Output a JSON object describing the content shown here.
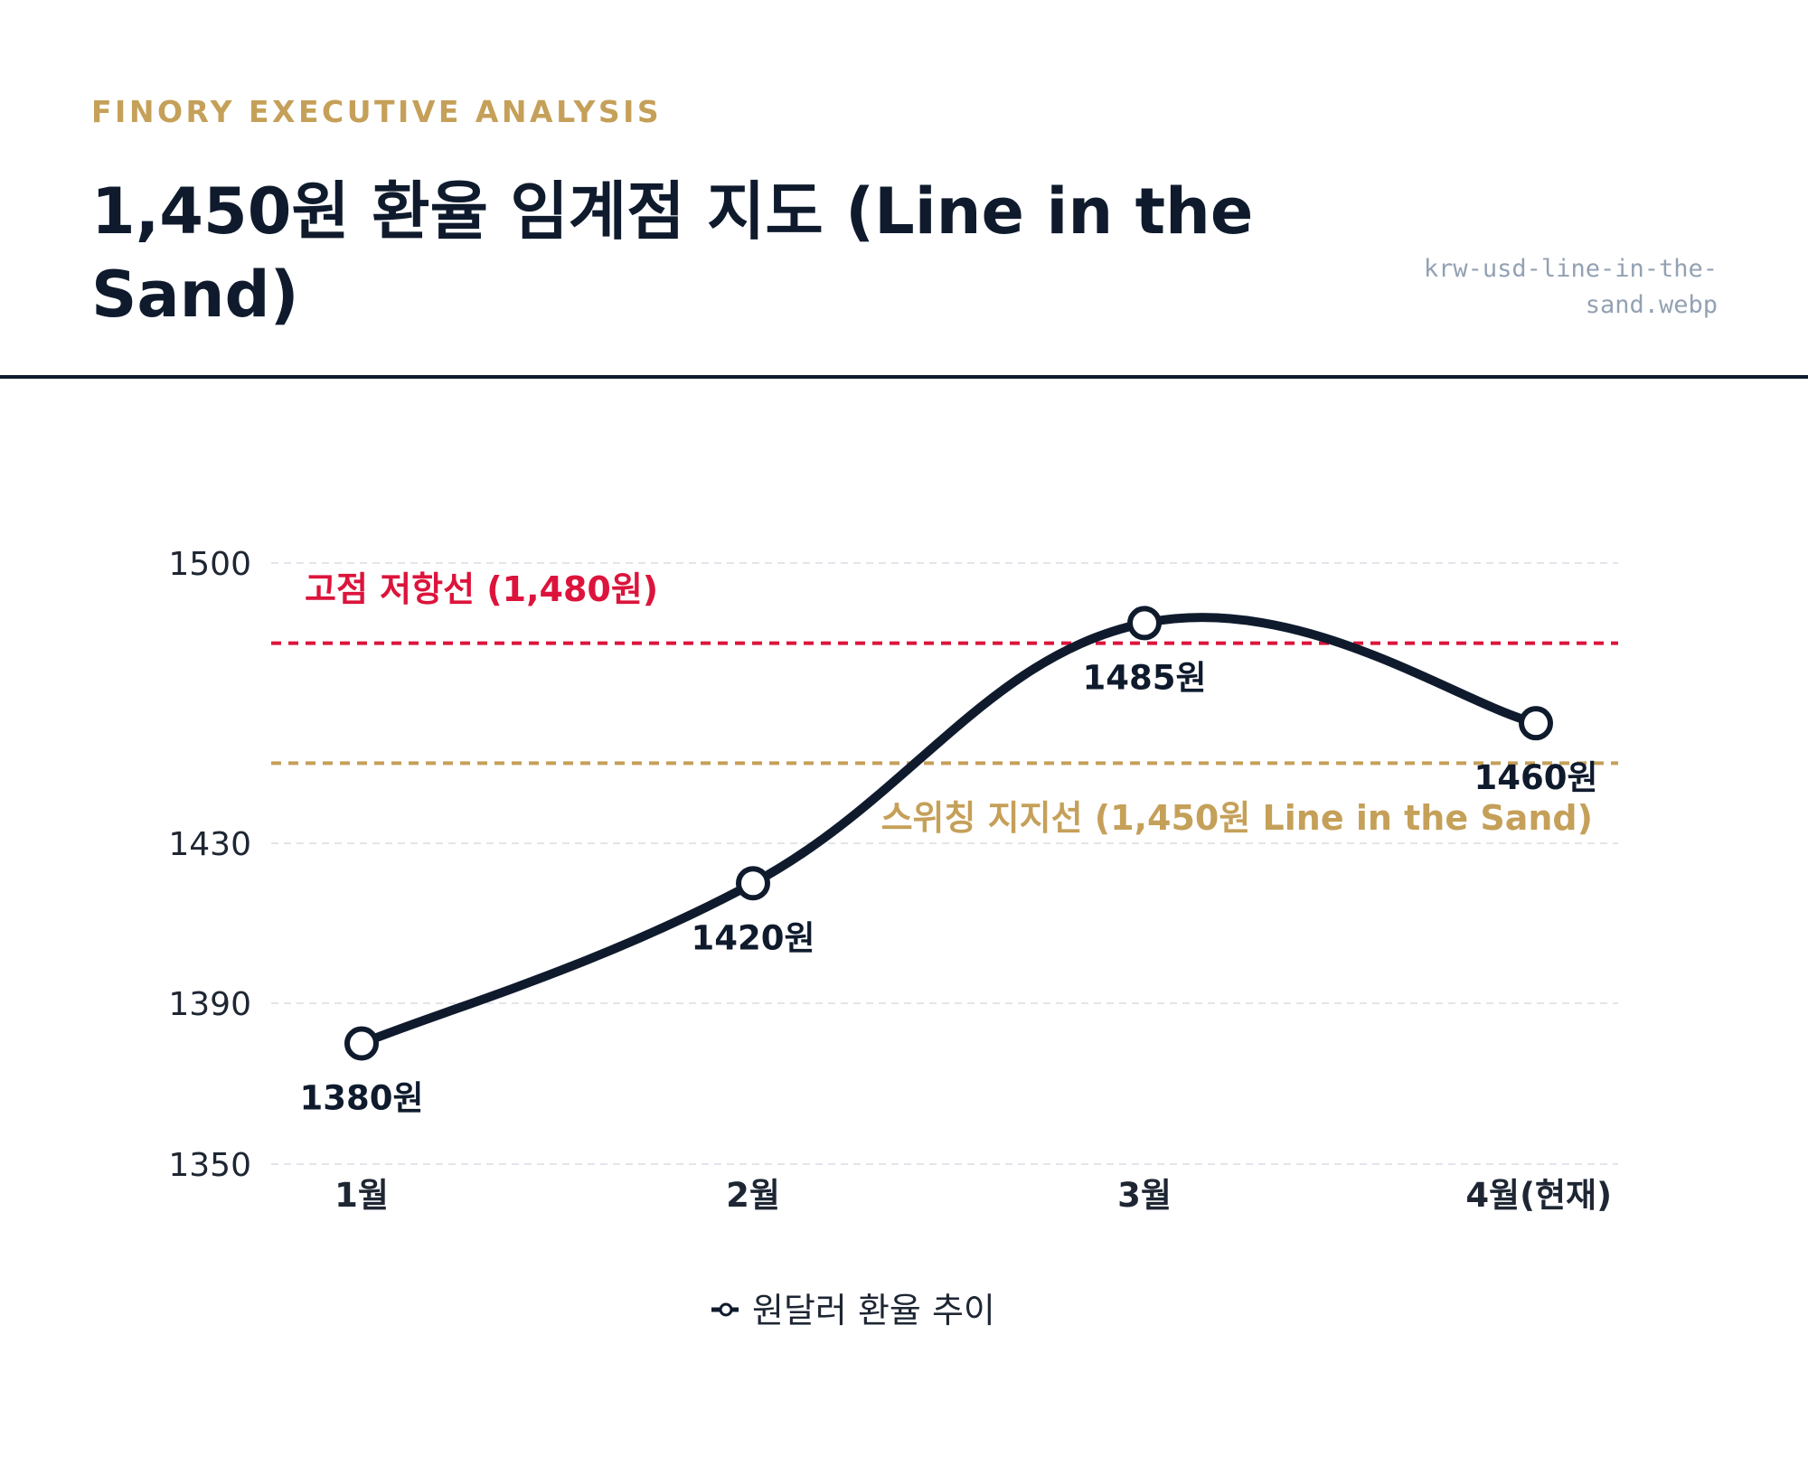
{
  "header": {
    "kicker": "FINORY EXECUTIVE ANALYSIS",
    "title": "1,450원 환율 임계점 지도 (Line in the Sand)",
    "filename": "krw-usd-line-in-the-sand.webp"
  },
  "colors": {
    "line": "#0f1b2d",
    "resistance": "#dc143c",
    "support": "#c5a059",
    "grid": "#e2e5ea"
  },
  "chart_data": {
    "type": "line",
    "categories": [
      "1월",
      "2월",
      "3월",
      "4월(현재)"
    ],
    "series": [
      {
        "name": "원달러 환율 추이",
        "values": [
          1380,
          1420,
          1485,
          1460
        ],
        "data_labels": [
          "1380원",
          "1420원",
          "1485원",
          "1460원"
        ]
      }
    ],
    "ylim": [
      1350,
      1500
    ],
    "yticks": [
      1350,
      1390,
      1430,
      1500
    ],
    "grid": true,
    "legend": "bottom-center",
    "reference_lines": [
      {
        "label": "고점 저항선 (1,480원)",
        "value": 1480,
        "color": "#dc143c"
      },
      {
        "label": "스위칭 지지선 (1,450원 Line in the Sand)",
        "value": 1450,
        "color": "#c5a059"
      }
    ]
  }
}
